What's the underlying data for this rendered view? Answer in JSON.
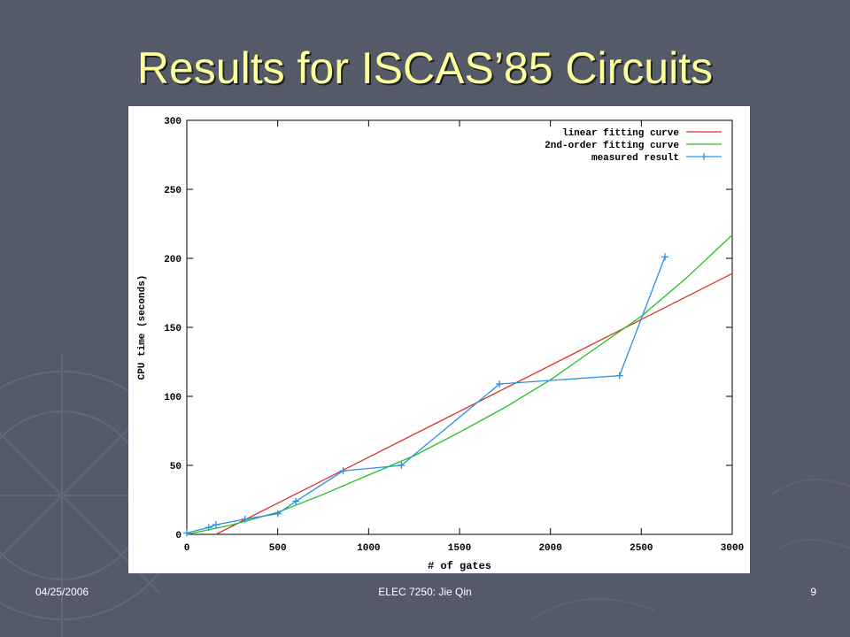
{
  "slide": {
    "title": "Results for ISCAS’85 Circuits",
    "footer_date": "04/25/2006",
    "footer_center": "ELEC 7250: Jie Qin",
    "page_number": "9",
    "background_color": "#555a68",
    "title_color": "#ffff99",
    "background_decoration": "compass-rose"
  },
  "chart_data": {
    "type": "line",
    "title": "",
    "xlabel": "# of gates",
    "ylabel": "CPU time (seconds)",
    "xlim": [
      0,
      3000
    ],
    "ylim": [
      0,
      300
    ],
    "x_ticks": [
      "0",
      "500",
      "1000",
      "1500",
      "2000",
      "2500",
      "3000"
    ],
    "y_ticks": [
      "0",
      "50",
      "100",
      "150",
      "200",
      "250",
      "300"
    ],
    "grid": false,
    "legend_position": "top-right",
    "series": [
      {
        "name": "linear fitting curve",
        "color": "#e0302a",
        "style": "line",
        "x": [
          160,
          3000
        ],
        "y": [
          0,
          189
        ]
      },
      {
        "name": "2nd-order fitting curve",
        "color": "#22c022",
        "style": "line",
        "x": [
          0,
          250,
          500,
          750,
          1000,
          1250,
          1500,
          1750,
          2000,
          2250,
          2500,
          2750,
          3000
        ],
        "y": [
          0,
          7,
          16,
          29,
          43,
          57,
          74,
          92,
          112,
          135,
          158,
          186,
          217
        ]
      },
      {
        "name": "measured result",
        "color": "#2d8fe0",
        "style": "line-markers",
        "x": [
          0,
          120,
          160,
          320,
          500,
          600,
          860,
          1180,
          1720,
          2380,
          2630
        ],
        "y": [
          1,
          5,
          7,
          11,
          15,
          24,
          46,
          50,
          109,
          115,
          201
        ]
      }
    ]
  }
}
